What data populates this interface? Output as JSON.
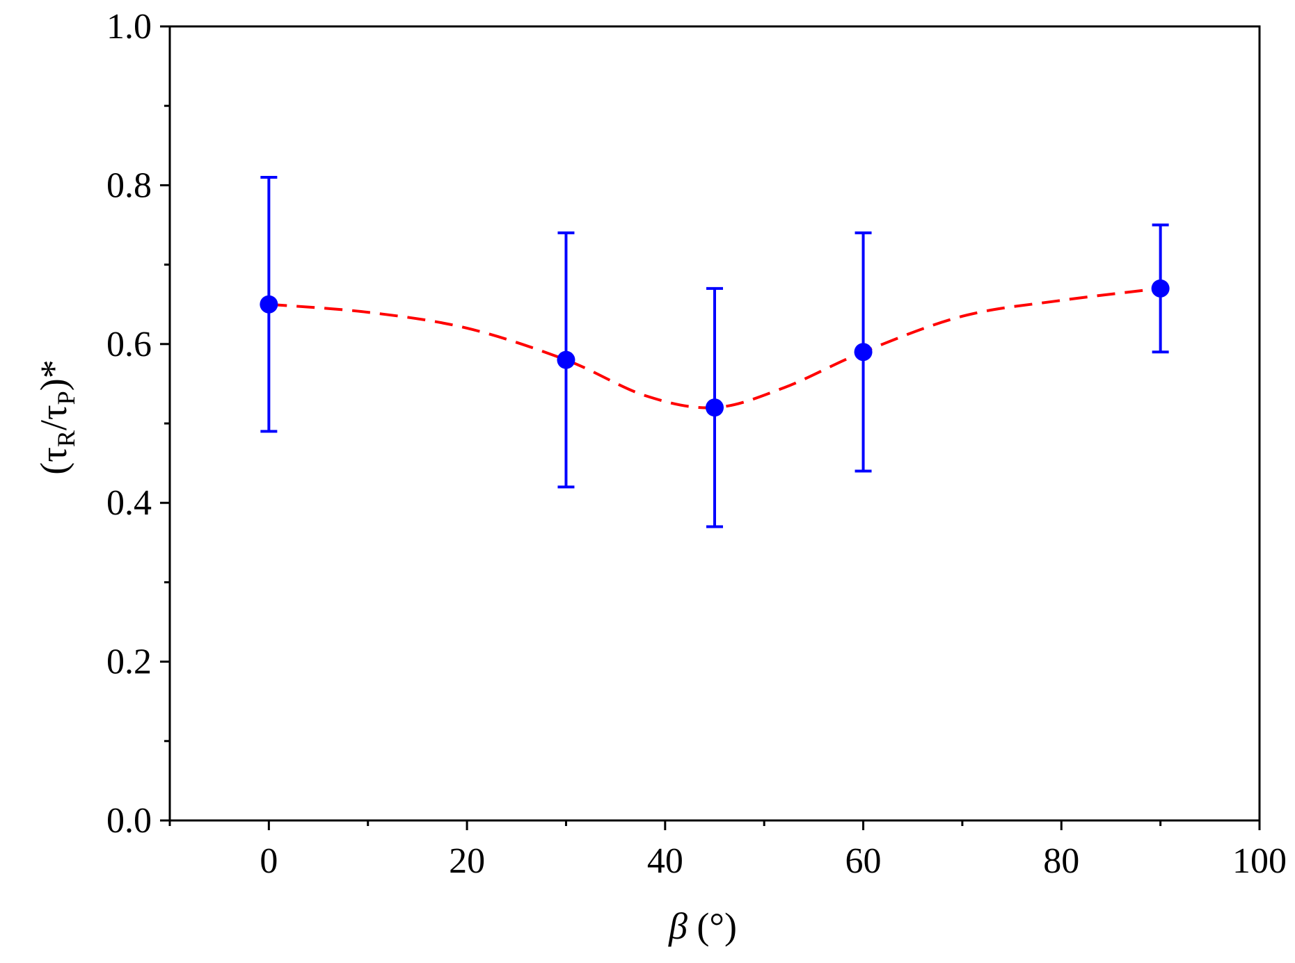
{
  "chart_data": {
    "type": "scatter",
    "title": "",
    "xlabel": {
      "symbol": "β",
      "unit": " (°)"
    },
    "ylabel": {
      "open": "(τ",
      "sub1": "R",
      "mid": "/τ",
      "sub2": "P",
      "close": ")*"
    },
    "xlim": [
      -10,
      100
    ],
    "ylim": [
      0.0,
      1.0
    ],
    "x_ticks": [
      0,
      20,
      40,
      60,
      80,
      100
    ],
    "x_tick_labels": [
      "0",
      "20",
      "40",
      "60",
      "80",
      "100"
    ],
    "x_minor_ticks": [
      -10,
      10,
      30,
      50,
      70,
      90
    ],
    "y_ticks": [
      0.0,
      0.2,
      0.4,
      0.6,
      0.8,
      1.0
    ],
    "y_tick_labels": [
      "0.0",
      "0.2",
      "0.4",
      "0.6",
      "0.8",
      "1.0"
    ],
    "y_minor_ticks": [
      0.1,
      0.3,
      0.5,
      0.7,
      0.9
    ],
    "grid": false,
    "legend": "none",
    "series": [
      {
        "type": "scatter_errorbar",
        "color": "#0000ff",
        "x": [
          0,
          30,
          45,
          60,
          90
        ],
        "y": [
          0.65,
          0.58,
          0.52,
          0.59,
          0.67
        ],
        "err_low": [
          0.49,
          0.42,
          0.37,
          0.44,
          0.59
        ],
        "err_high": [
          0.81,
          0.74,
          0.67,
          0.74,
          0.75
        ]
      },
      {
        "type": "fit_curve",
        "color": "#ff0000",
        "style": "dashed",
        "x": [
          0,
          10,
          20,
          30,
          38,
          45,
          52,
          60,
          70,
          80,
          90
        ],
        "y": [
          0.65,
          0.64,
          0.62,
          0.58,
          0.535,
          0.52,
          0.545,
          0.59,
          0.635,
          0.655,
          0.67
        ]
      }
    ]
  }
}
